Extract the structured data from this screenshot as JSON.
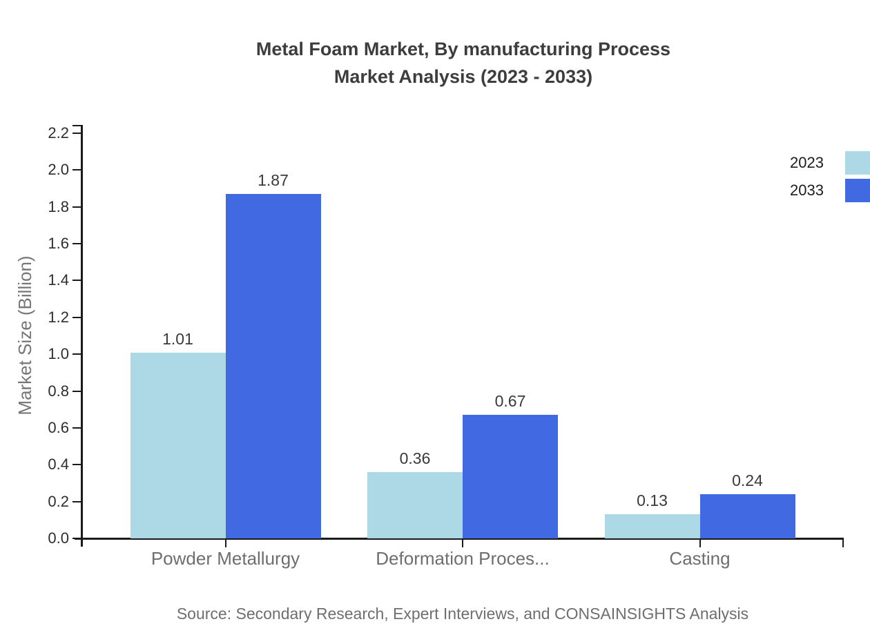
{
  "title": {
    "line1": "Metal Foam Market, By manufacturing Process",
    "line2": "Market Analysis (2023 - 2033)"
  },
  "source": "Source: Secondary Research, Expert Interviews, and CONSAINSIGHTS Analysis",
  "colors": {
    "series_2023": "#ADD8E6",
    "series_2033": "#4169E1",
    "axis": "#1a1a1a",
    "title_text": "#3d3d3d",
    "category_text": "#6e6e6e",
    "tick_text": "#2d2d2d",
    "value_text": "#3a3a3a"
  },
  "legend": {
    "items": [
      {
        "label": "2023",
        "color": "#ADD8E6"
      },
      {
        "label": "2033",
        "color": "#4169E1"
      }
    ]
  },
  "chart_data": {
    "type": "bar",
    "title": "Metal Foam Market, By manufacturing Process Market Analysis (2023 - 2033)",
    "categories": [
      "Powder Metallurgy",
      "Deformation Proces...",
      "Casting"
    ],
    "series": [
      {
        "name": "2023",
        "color": "#ADD8E6",
        "values": [
          1.01,
          0.36,
          0.13
        ]
      },
      {
        "name": "2033",
        "color": "#4169E1",
        "values": [
          1.87,
          0.67,
          0.24
        ]
      }
    ],
    "xlabel": "",
    "ylabel": "Market Size (Billion)",
    "ylim": [
      0,
      2.2
    ],
    "ytick_step": 0.2,
    "grid": false,
    "legend_position": "top-right",
    "value_labels": true
  }
}
